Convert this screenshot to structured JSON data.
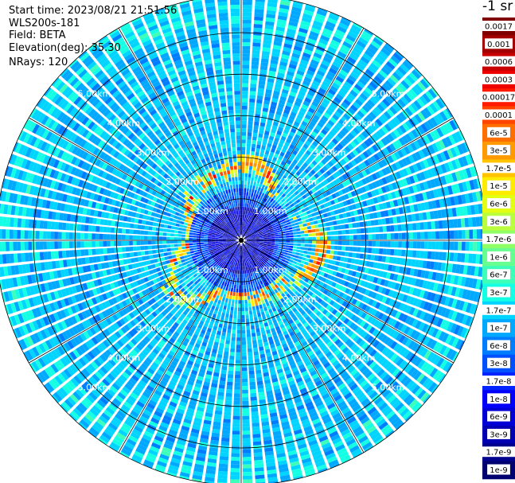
{
  "header": {
    "start_time": "Start time: 2023/08/21 21:51:56",
    "device": "WLS200s-181",
    "field": "Field: BETA",
    "elevation": "Elevation(deg): 35.30",
    "nrays": "NRays: 120"
  },
  "colorbar": {
    "unit_label": "-1 sr",
    "levels": [
      "0.0017",
      "0.001",
      "0.0006",
      "0.0003",
      "0.00017",
      "0.0001",
      "6e-5",
      "3e-5",
      "1.7e-5",
      "1e-5",
      "6e-6",
      "3e-6",
      "1.7e-6",
      "1e-6",
      "6e-7",
      "3e-7",
      "1.7e-7",
      "1e-7",
      "6e-8",
      "3e-8",
      "1.7e-8",
      "1e-8",
      "6e-9",
      "3e-9",
      "1.7e-9",
      "1e-9"
    ],
    "colors": [
      "#800000",
      "#a30000",
      "#c80000",
      "#ee0000",
      "#ff1a00",
      "#ff4500",
      "#ff6f00",
      "#ff9a00",
      "#ffc400",
      "#ffec00",
      "#e3ff14",
      "#baff3d",
      "#90ff66",
      "#66ff90",
      "#3dffba",
      "#14ffe3",
      "#00d4ff",
      "#00a8ff",
      "#007cff",
      "#0050ff",
      "#0024ff",
      "#0000fa",
      "#0000d6",
      "#0000b2",
      "#00008e",
      "#000070"
    ]
  },
  "chart_data": {
    "type": "heatmap",
    "projection": "polar-ppi",
    "rays": 120,
    "elevation_deg": 35.3,
    "field": "BETA",
    "range_rings_km": [
      1.0,
      2.0,
      3.0,
      4.0,
      5.0
    ],
    "range_ring_labels": [
      "1.00km",
      "2.00km",
      "3.00km",
      "4.00km",
      "5.00km"
    ],
    "max_range_km": 5.9,
    "radials_deg": [
      0,
      30,
      60,
      90,
      120,
      150,
      180,
      210,
      240,
      270,
      300,
      330
    ],
    "background_level": "1e-7 to 6e-8",
    "aerosol_layer": {
      "range_km": [
        1.25,
        2.0
      ],
      "peak_level": "1e-5 to 3e-5",
      "patchiness": "broken ring, strongest at north-east and south"
    },
    "near_field": {
      "range_km": [
        0.0,
        0.75
      ],
      "level": "1.7e-8 to 1e-9"
    }
  }
}
